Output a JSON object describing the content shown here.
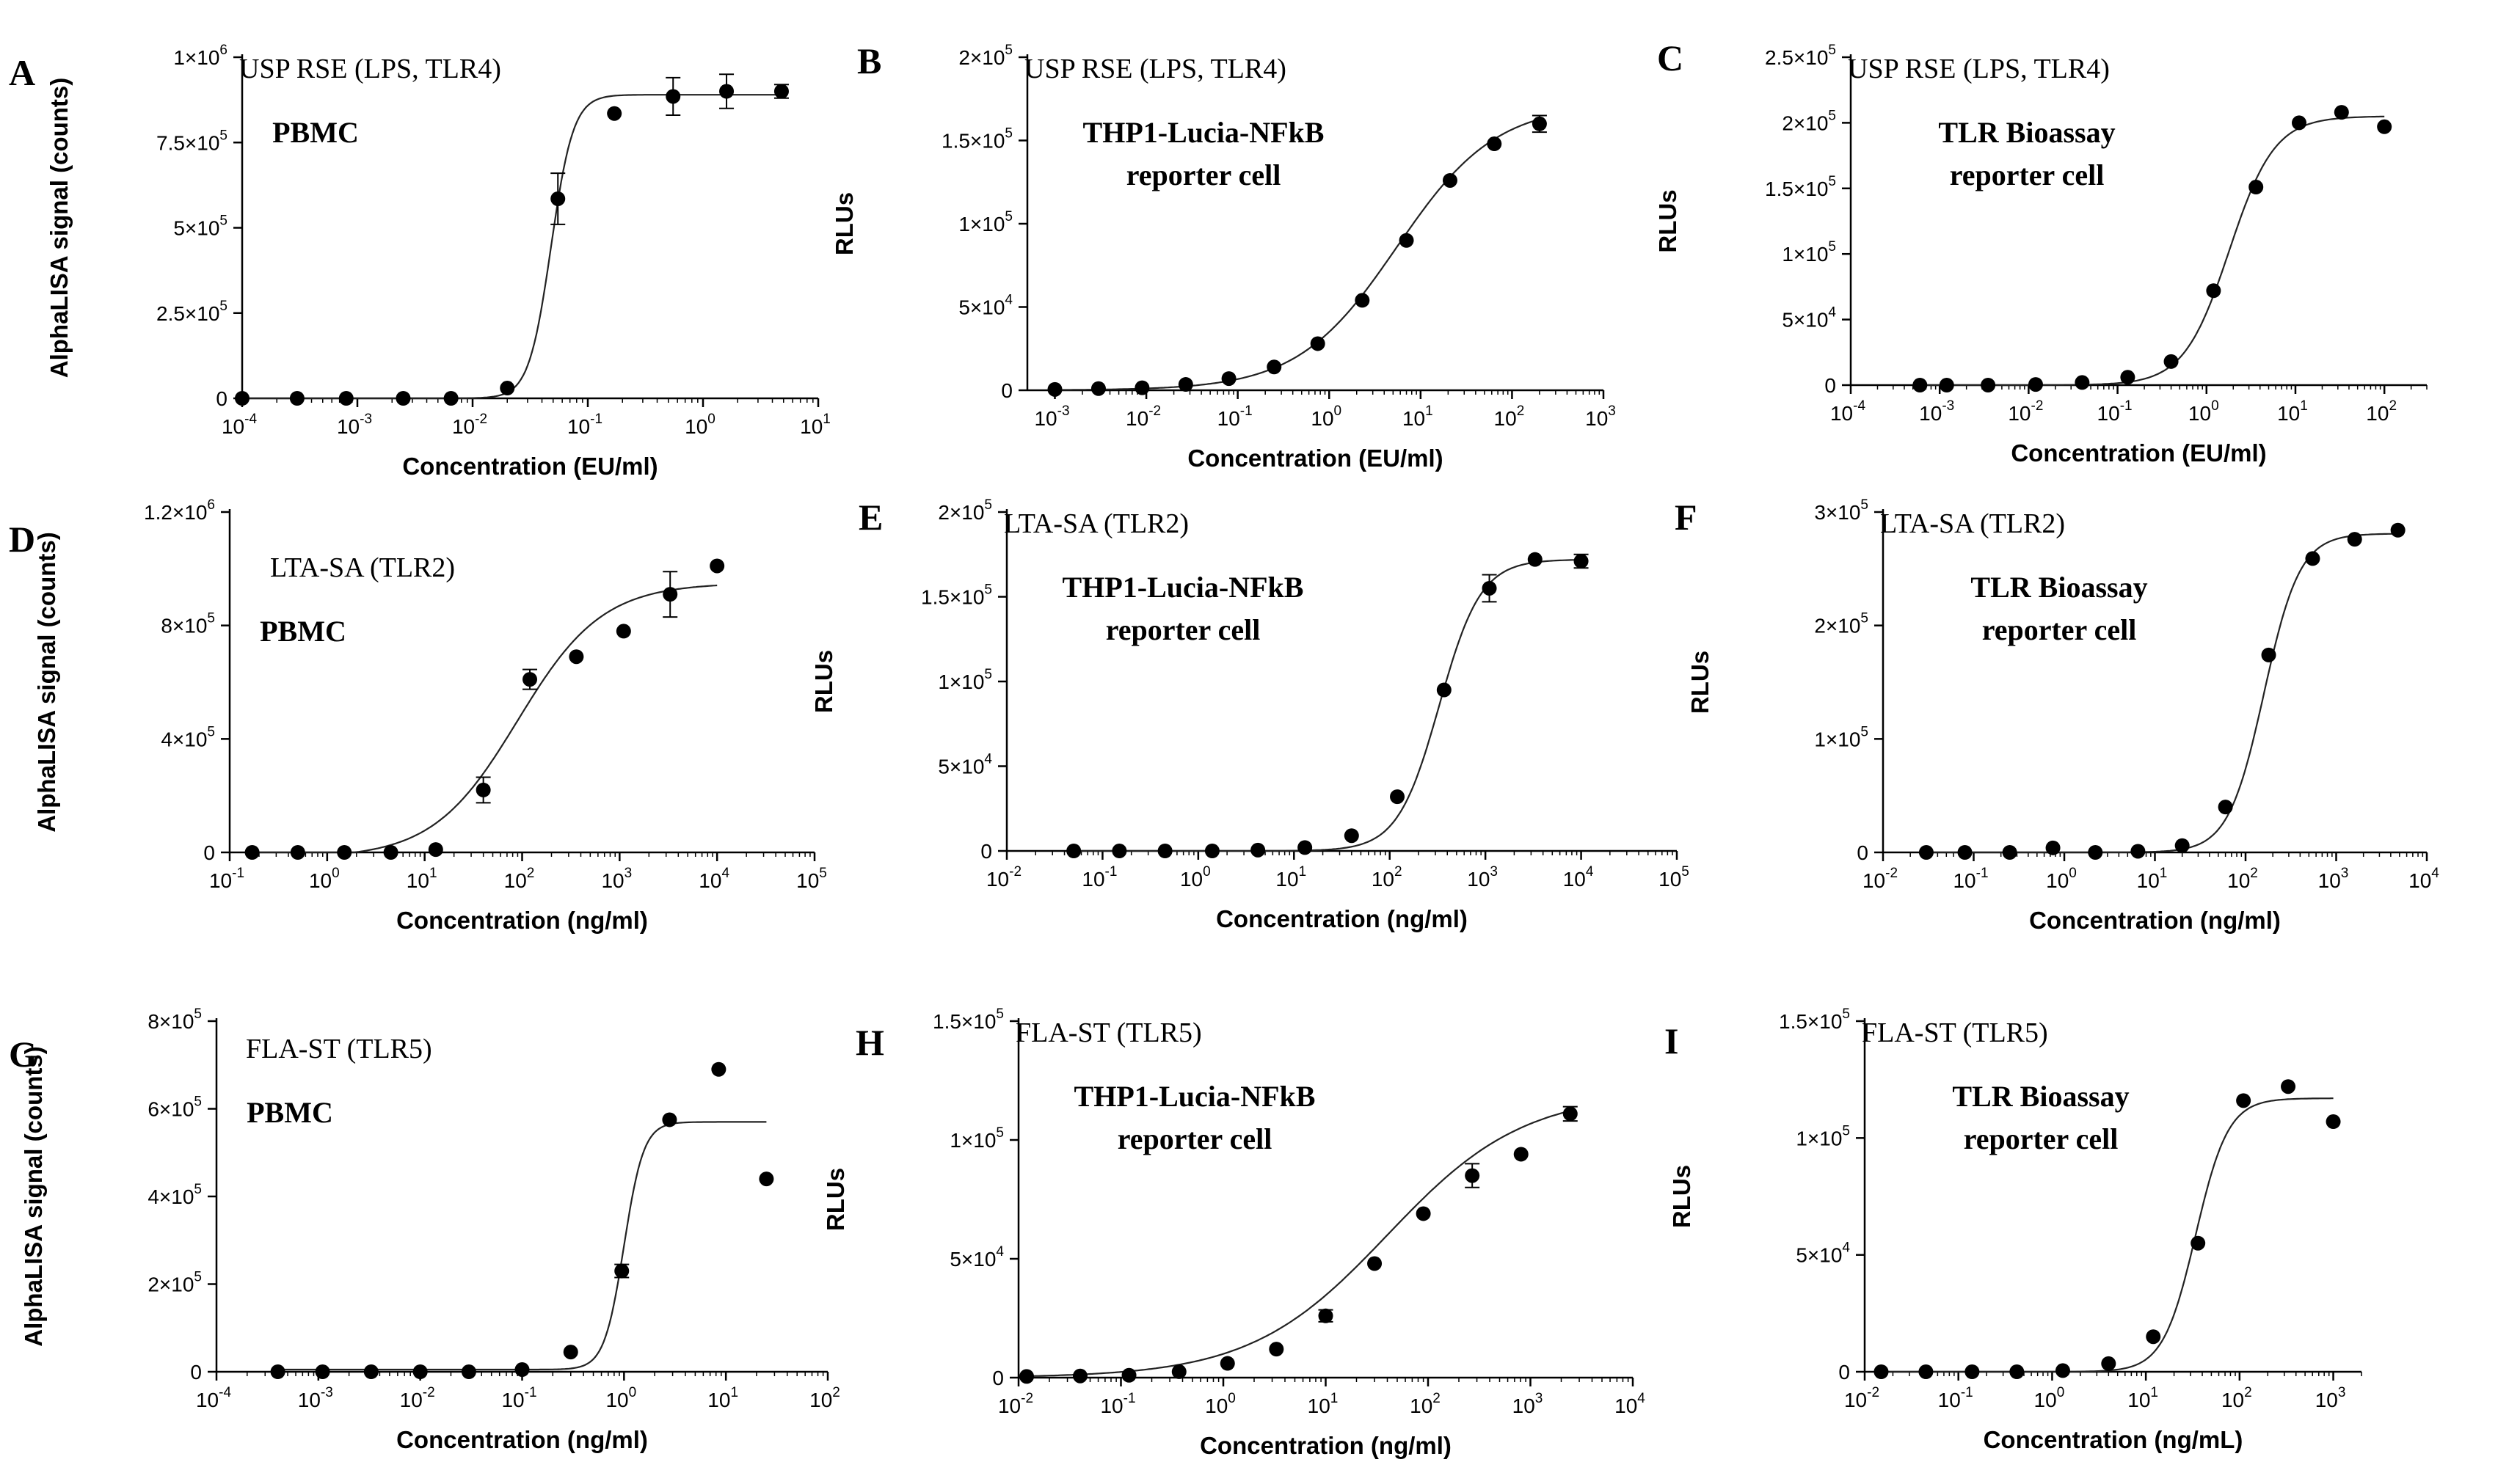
{
  "chart_data": [
    {
      "panel": "A",
      "type": "scatter",
      "subtitle": "USP RSE (LPS, TLR4)",
      "cell_type": [
        "PBMC"
      ],
      "xlabel": "Concentration (EU/ml)",
      "ylabel": "AlphaLISA signal (counts)",
      "x_scale": "log",
      "xlim": [
        0.0001,
        10
      ],
      "ylim": [
        0,
        1000000
      ],
      "x_ticks": [
        {
          "m": "10",
          "e": "-4"
        },
        {
          "m": "10",
          "e": "-3"
        },
        {
          "m": "10",
          "e": "-2"
        },
        {
          "m": "10",
          "e": "-1"
        },
        {
          "m": "10",
          "e": "0"
        },
        {
          "m": "10",
          "e": "1"
        }
      ],
      "y_ticks": [
        {
          "v": 0,
          "m": "0",
          "e": ""
        },
        {
          "v": 250000,
          "m": "2.5×10",
          "e": "5"
        },
        {
          "v": 500000,
          "m": "5×10",
          "e": "5"
        },
        {
          "v": 750000,
          "m": "7.5×10",
          "e": "5"
        },
        {
          "v": 1000000,
          "m": "1×10",
          "e": "6"
        }
      ],
      "points": [
        {
          "x": 0.0001,
          "y": 0
        },
        {
          "x": 0.0003,
          "y": 0
        },
        {
          "x": 0.0008,
          "y": 0
        },
        {
          "x": 0.0025,
          "y": 0
        },
        {
          "x": 0.0065,
          "y": 0
        },
        {
          "x": 0.02,
          "y": 30000
        },
        {
          "x": 0.055,
          "y": 585000,
          "err": 75000
        },
        {
          "x": 0.17,
          "y": 835000
        },
        {
          "x": 0.55,
          "y": 885000,
          "err": 55000
        },
        {
          "x": 1.6,
          "y": 900000,
          "err": 50000
        },
        {
          "x": 4.8,
          "y": 900000,
          "err": 20000
        }
      ],
      "fit": {
        "bottom": 0,
        "top": 890000,
        "ec50": 0.048,
        "hill": 4.5
      }
    },
    {
      "panel": "B",
      "type": "scatter",
      "subtitle": "USP RSE (LPS, TLR4)",
      "cell_type": [
        "THP1-Lucia-NFkB",
        "reporter cell"
      ],
      "xlabel": "Concentration (EU/ml)",
      "ylabel": "RLUs",
      "x_scale": "log",
      "xlim": [
        0.0005,
        1000
      ],
      "ylim": [
        0,
        200000
      ],
      "x_ticks": [
        {
          "m": "10",
          "e": "-3"
        },
        {
          "m": "10",
          "e": "-2"
        },
        {
          "m": "10",
          "e": "-1"
        },
        {
          "m": "10",
          "e": "0"
        },
        {
          "m": "10",
          "e": "1"
        },
        {
          "m": "10",
          "e": "2"
        },
        {
          "m": "10",
          "e": "3"
        }
      ],
      "y_ticks": [
        {
          "v": 0,
          "m": "0",
          "e": ""
        },
        {
          "v": 50000,
          "m": "5×10",
          "e": "4"
        },
        {
          "v": 100000,
          "m": "1×10",
          "e": "5"
        },
        {
          "v": 150000,
          "m": "1.5×10",
          "e": "5"
        },
        {
          "v": 200000,
          "m": "2×10",
          "e": "5"
        }
      ],
      "points": [
        {
          "x": 0.001,
          "y": 500
        },
        {
          "x": 0.003,
          "y": 1000
        },
        {
          "x": 0.009,
          "y": 1500
        },
        {
          "x": 0.027,
          "y": 3500
        },
        {
          "x": 0.08,
          "y": 7000
        },
        {
          "x": 0.25,
          "y": 14000
        },
        {
          "x": 0.75,
          "y": 28000
        },
        {
          "x": 2.3,
          "y": 54000
        },
        {
          "x": 7,
          "y": 90000
        },
        {
          "x": 21,
          "y": 126000
        },
        {
          "x": 64,
          "y": 148000
        },
        {
          "x": 200,
          "y": 160000,
          "err": 5000
        }
      ],
      "fit": {
        "bottom": 0,
        "top": 172000,
        "ec50": 5.5,
        "hill": 0.8
      }
    },
    {
      "panel": "C",
      "type": "scatter",
      "subtitle": "USP RSE (LPS, TLR4)",
      "cell_type": [
        "TLR Bioassay",
        "reporter cell"
      ],
      "xlabel": "Concentration (EU/ml)",
      "ylabel": "RLUs",
      "x_scale": "log",
      "xlim": [
        0.0001,
        300
      ],
      "ylim": [
        0,
        250000
      ],
      "x_ticks": [
        {
          "m": "10",
          "e": "-4"
        },
        {
          "m": "10",
          "e": "-3"
        },
        {
          "m": "10",
          "e": "-2"
        },
        {
          "m": "10",
          "e": "-1"
        },
        {
          "m": "10",
          "e": "0"
        },
        {
          "m": "10",
          "e": "1"
        },
        {
          "m": "10",
          "e": "2"
        }
      ],
      "y_ticks": [
        {
          "v": 0,
          "m": "0",
          "e": ""
        },
        {
          "v": 50000,
          "m": "5×10",
          "e": "4"
        },
        {
          "v": 100000,
          "m": "1×10",
          "e": "5"
        },
        {
          "v": 150000,
          "m": "1.5×10",
          "e": "5"
        },
        {
          "v": 200000,
          "m": "2×10",
          "e": "5"
        },
        {
          "v": 250000,
          "m": "2.5×10",
          "e": "5"
        }
      ],
      "points": [
        {
          "x": 0.0006,
          "y": 0
        },
        {
          "x": 0.0012,
          "y": 0
        },
        {
          "x": 0.0035,
          "y": 0
        },
        {
          "x": 0.012,
          "y": 500
        },
        {
          "x": 0.04,
          "y": 2000
        },
        {
          "x": 0.13,
          "y": 6000
        },
        {
          "x": 0.4,
          "y": 18000
        },
        {
          "x": 1.2,
          "y": 72000
        },
        {
          "x": 3.6,
          "y": 151000
        },
        {
          "x": 11,
          "y": 200000
        },
        {
          "x": 33,
          "y": 208000
        },
        {
          "x": 100,
          "y": 197000
        }
      ],
      "fit": {
        "bottom": 0,
        "top": 205000,
        "ec50": 1.8,
        "hill": 1.7
      }
    },
    {
      "panel": "D",
      "type": "scatter",
      "subtitle": "LTA-SA (TLR2)",
      "cell_type": [
        "PBMC"
      ],
      "xlabel": "Concentration (ng/ml)",
      "ylabel": "AlphaLISA signal (counts)",
      "x_scale": "log",
      "xlim": [
        0.1,
        100000
      ],
      "ylim": [
        0,
        1200000
      ],
      "x_ticks": [
        {
          "m": "10",
          "e": "-1"
        },
        {
          "m": "10",
          "e": "0"
        },
        {
          "m": "10",
          "e": "1"
        },
        {
          "m": "10",
          "e": "2"
        },
        {
          "m": "10",
          "e": "3"
        },
        {
          "m": "10",
          "e": "4"
        },
        {
          "m": "10",
          "e": "5"
        }
      ],
      "y_ticks": [
        {
          "v": 0,
          "m": "0",
          "e": ""
        },
        {
          "v": 400000,
          "m": "4×10",
          "e": "5"
        },
        {
          "v": 800000,
          "m": "8×10",
          "e": "5"
        },
        {
          "v": 1200000,
          "m": "1.2×10",
          "e": "6"
        }
      ],
      "points": [
        {
          "x": 0.17,
          "y": 0
        },
        {
          "x": 0.5,
          "y": 0
        },
        {
          "x": 1.5,
          "y": 0
        },
        {
          "x": 4.5,
          "y": 0
        },
        {
          "x": 13,
          "y": 10000
        },
        {
          "x": 40,
          "y": 220000,
          "err": 45000
        },
        {
          "x": 120,
          "y": 610000,
          "err": 35000
        },
        {
          "x": 360,
          "y": 690000
        },
        {
          "x": 1100,
          "y": 780000
        },
        {
          "x": 3300,
          "y": 910000,
          "err": 80000
        },
        {
          "x": 10000,
          "y": 1010000
        }
      ],
      "fit": {
        "bottom": -20000,
        "top": 950000,
        "ec50": 90,
        "hill": 1.0
      }
    },
    {
      "panel": "E",
      "type": "scatter",
      "subtitle": "LTA-SA (TLR2)",
      "cell_type": [
        "THP1-Lucia-NFkB",
        "reporter cell"
      ],
      "xlabel": "Concentration (ng/ml)",
      "ylabel": "RLUs",
      "x_scale": "log",
      "xlim": [
        0.01,
        100000
      ],
      "ylim": [
        0,
        200000
      ],
      "x_ticks": [
        {
          "m": "10",
          "e": "-2"
        },
        {
          "m": "10",
          "e": "-1"
        },
        {
          "m": "10",
          "e": "0"
        },
        {
          "m": "10",
          "e": "1"
        },
        {
          "m": "10",
          "e": "2"
        },
        {
          "m": "10",
          "e": "3"
        },
        {
          "m": "10",
          "e": "4"
        },
        {
          "m": "10",
          "e": "5"
        }
      ],
      "y_ticks": [
        {
          "v": 0,
          "m": "0",
          "e": ""
        },
        {
          "v": 50000,
          "m": "5×10",
          "e": "4"
        },
        {
          "v": 100000,
          "m": "1×10",
          "e": "5"
        },
        {
          "v": 150000,
          "m": "1.5×10",
          "e": "5"
        },
        {
          "v": 200000,
          "m": "2×10",
          "e": "5"
        }
      ],
      "points": [
        {
          "x": 0.05,
          "y": 0
        },
        {
          "x": 0.15,
          "y": 0
        },
        {
          "x": 0.45,
          "y": 0
        },
        {
          "x": 1.4,
          "y": 0
        },
        {
          "x": 4.2,
          "y": 500
        },
        {
          "x": 13,
          "y": 2000
        },
        {
          "x": 40,
          "y": 9000
        },
        {
          "x": 120,
          "y": 32000
        },
        {
          "x": 370,
          "y": 95000
        },
        {
          "x": 1100,
          "y": 155000,
          "err": 8000
        },
        {
          "x": 3300,
          "y": 172000
        },
        {
          "x": 10000,
          "y": 171000,
          "err": 4000
        }
      ],
      "fit": {
        "bottom": 0,
        "top": 172000,
        "ec50": 330,
        "hill": 2.0
      }
    },
    {
      "panel": "F",
      "type": "scatter",
      "subtitle": "LTA-SA (TLR2)",
      "cell_type": [
        "TLR Bioassay",
        "reporter cell"
      ],
      "xlabel": "Concentration (ng/ml)",
      "ylabel": "RLUs",
      "x_scale": "log",
      "xlim": [
        0.01,
        10000
      ],
      "ylim": [
        0,
        300000
      ],
      "x_ticks": [
        {
          "m": "10",
          "e": "-2"
        },
        {
          "m": "10",
          "e": "-1"
        },
        {
          "m": "10",
          "e": "0"
        },
        {
          "m": "10",
          "e": "1"
        },
        {
          "m": "10",
          "e": "2"
        },
        {
          "m": "10",
          "e": "3"
        },
        {
          "m": "10",
          "e": "4"
        }
      ],
      "y_ticks": [
        {
          "v": 0,
          "m": "0",
          "e": ""
        },
        {
          "v": 100000,
          "m": "1×10",
          "e": "5"
        },
        {
          "v": 200000,
          "m": "2×10",
          "e": "5"
        },
        {
          "v": 300000,
          "m": "3×10",
          "e": "5"
        }
      ],
      "points": [
        {
          "x": 0.03,
          "y": 0
        },
        {
          "x": 0.08,
          "y": 0
        },
        {
          "x": 0.25,
          "y": 0
        },
        {
          "x": 0.75,
          "y": 4000
        },
        {
          "x": 2.2,
          "y": 0
        },
        {
          "x": 6.5,
          "y": 1000
        },
        {
          "x": 20,
          "y": 6000
        },
        {
          "x": 60,
          "y": 40000
        },
        {
          "x": 180,
          "y": 174000
        },
        {
          "x": 550,
          "y": 259000
        },
        {
          "x": 1600,
          "y": 276000
        },
        {
          "x": 4800,
          "y": 284000
        }
      ],
      "fit": {
        "bottom": 0,
        "top": 281000,
        "ec50": 160,
        "hill": 2.2
      }
    },
    {
      "panel": "G",
      "type": "scatter",
      "subtitle": "FLA-ST (TLR5)",
      "cell_type": [
        "PBMC"
      ],
      "xlabel": "Concentration (ng/ml)",
      "ylabel": "AlphaLISA signal (counts)",
      "x_scale": "log",
      "xlim": [
        0.0001,
        100
      ],
      "ylim": [
        0,
        800000
      ],
      "x_ticks": [
        {
          "m": "10",
          "e": "-4"
        },
        {
          "m": "10",
          "e": "-3"
        },
        {
          "m": "10",
          "e": "-2"
        },
        {
          "m": "10",
          "e": "-1"
        },
        {
          "m": "10",
          "e": "0"
        },
        {
          "m": "10",
          "e": "1"
        },
        {
          "m": "10",
          "e": "2"
        }
      ],
      "y_ticks": [
        {
          "v": 0,
          "m": "0",
          "e": ""
        },
        {
          "v": 200000,
          "m": "2×10",
          "e": "5"
        },
        {
          "v": 400000,
          "m": "4×10",
          "e": "5"
        },
        {
          "v": 600000,
          "m": "6×10",
          "e": "5"
        },
        {
          "v": 800000,
          "m": "8×10",
          "e": "5"
        }
      ],
      "points": [
        {
          "x": 0.0004,
          "y": 0
        },
        {
          "x": 0.0011,
          "y": 0
        },
        {
          "x": 0.0033,
          "y": 0
        },
        {
          "x": 0.01,
          "y": 0
        },
        {
          "x": 0.03,
          "y": 0
        },
        {
          "x": 0.1,
          "y": 5000
        },
        {
          "x": 0.3,
          "y": 45000
        },
        {
          "x": 0.95,
          "y": 230000,
          "err": 15000
        },
        {
          "x": 2.8,
          "y": 575000
        },
        {
          "x": 8.5,
          "y": 690000
        },
        {
          "x": 25,
          "y": 440000
        }
      ],
      "fit": {
        "bottom": 5000,
        "top": 570000,
        "ec50": 1.0,
        "hill": 4.5
      }
    },
    {
      "panel": "H",
      "type": "scatter",
      "subtitle": "FLA-ST (TLR5)",
      "cell_type": [
        "THP1-Lucia-NFkB",
        "reporter cell"
      ],
      "xlabel": "Concentration (ng/ml)",
      "ylabel": "RLUs",
      "x_scale": "log",
      "xlim": [
        0.01,
        10000
      ],
      "ylim": [
        0,
        150000
      ],
      "x_ticks": [
        {
          "m": "10",
          "e": "-2"
        },
        {
          "m": "10",
          "e": "-1"
        },
        {
          "m": "10",
          "e": "0"
        },
        {
          "m": "10",
          "e": "1"
        },
        {
          "m": "10",
          "e": "2"
        },
        {
          "m": "10",
          "e": "3"
        },
        {
          "m": "10",
          "e": "4"
        }
      ],
      "y_ticks": [
        {
          "v": 0,
          "m": "0",
          "e": ""
        },
        {
          "v": 50000,
          "m": "5×10",
          "e": "4"
        },
        {
          "v": 100000,
          "m": "1×10",
          "e": "5"
        },
        {
          "v": 150000,
          "m": "1.5×10",
          "e": "5"
        }
      ],
      "points": [
        {
          "x": 0.012,
          "y": 500
        },
        {
          "x": 0.04,
          "y": 700
        },
        {
          "x": 0.12,
          "y": 1000
        },
        {
          "x": 0.37,
          "y": 2500
        },
        {
          "x": 1.1,
          "y": 6000
        },
        {
          "x": 3.3,
          "y": 12000
        },
        {
          "x": 10,
          "y": 26000,
          "err": 2500
        },
        {
          "x": 30,
          "y": 48000
        },
        {
          "x": 90,
          "y": 69000
        },
        {
          "x": 270,
          "y": 85000,
          "err": 5000
        },
        {
          "x": 810,
          "y": 94000
        },
        {
          "x": 2450,
          "y": 111000,
          "err": 3000
        }
      ],
      "fit": {
        "bottom": 0,
        "top": 120000,
        "ec50": 40,
        "hill": 0.65
      }
    },
    {
      "panel": "I",
      "type": "scatter",
      "subtitle": "FLA-ST (TLR5)",
      "cell_type": [
        "TLR Bioassay",
        "reporter cell"
      ],
      "xlabel": "Concentration (ng/mL)",
      "ylabel": "RLUs",
      "x_scale": "log",
      "xlim": [
        0.01,
        2000
      ],
      "ylim": [
        0,
        150000
      ],
      "x_ticks": [
        {
          "m": "10",
          "e": "-2"
        },
        {
          "m": "10",
          "e": "-1"
        },
        {
          "m": "10",
          "e": "0"
        },
        {
          "m": "10",
          "e": "1"
        },
        {
          "m": "10",
          "e": "2"
        },
        {
          "m": "10",
          "e": "3"
        }
      ],
      "y_ticks": [
        {
          "v": 0,
          "m": "0",
          "e": ""
        },
        {
          "v": 50000,
          "m": "5×10",
          "e": "4"
        },
        {
          "v": 100000,
          "m": "1×10",
          "e": "5"
        },
        {
          "v": 150000,
          "m": "1.5×10",
          "e": "5"
        }
      ],
      "points": [
        {
          "x": 0.015,
          "y": 0
        },
        {
          "x": 0.045,
          "y": 0
        },
        {
          "x": 0.14,
          "y": 0
        },
        {
          "x": 0.42,
          "y": 0
        },
        {
          "x": 1.3,
          "y": 500
        },
        {
          "x": 4,
          "y": 3500
        },
        {
          "x": 12,
          "y": 15000
        },
        {
          "x": 36,
          "y": 55000
        },
        {
          "x": 110,
          "y": 116000
        },
        {
          "x": 330,
          "y": 122000
        },
        {
          "x": 1000,
          "y": 107000
        }
      ],
      "fit": {
        "bottom": 0,
        "top": 117000,
        "ec50": 34,
        "hill": 2.5
      }
    }
  ]
}
